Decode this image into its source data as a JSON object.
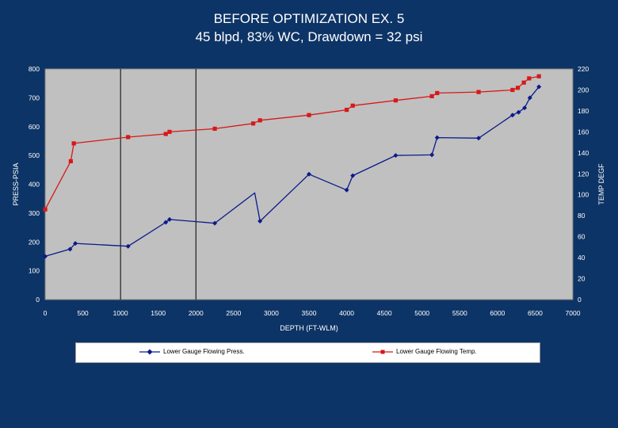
{
  "chart_data": {
    "type": "line",
    "title": "BEFORE OPTIMIZATION EX. 5",
    "subtitle": "45 blpd, 83% WC, Drawdown = 32 psi",
    "xlabel": "DEPTH (FT-WLM)",
    "ylabel": "PRESS-PSIA",
    "y2label": "TEMP DEGF",
    "xlim": [
      0,
      7000
    ],
    "ylim": [
      0,
      800
    ],
    "y2lim": [
      0,
      220
    ],
    "x_ticks": [
      "0",
      "500",
      "1000",
      "1500",
      "2000",
      "2500",
      "3000",
      "3500",
      "4000",
      "4500",
      "5000",
      "5500",
      "6000",
      "6500",
      "7000"
    ],
    "y_ticks": [
      "0",
      "100",
      "200",
      "300",
      "400",
      "500",
      "600",
      "700",
      "800"
    ],
    "y2_ticks": [
      "0",
      "20",
      "40",
      "60",
      "80",
      "100",
      "120",
      "140",
      "160",
      "180",
      "200",
      "220"
    ],
    "vertical_lines": [
      1000,
      2000
    ],
    "legend_position": "bottom",
    "series": [
      {
        "name": "Lower Gauge Flowing Press.",
        "axis": "left",
        "color": "#0a1a8a",
        "marker": "diamond",
        "x": [
          0,
          330,
          400,
          1100,
          1600,
          1650,
          2250,
          2780,
          2850,
          3500,
          4000,
          4080,
          4650,
          5130,
          5200,
          5750,
          6200,
          6280,
          6360,
          6430,
          6550
        ],
        "y": [
          150,
          175,
          195,
          185,
          268,
          278,
          265,
          370,
          272,
          435,
          380,
          430,
          500,
          502,
          562,
          560,
          640,
          650,
          665,
          700,
          738
        ],
        "markers": [
          1,
          1,
          1,
          1,
          1,
          1,
          1,
          0,
          1,
          1,
          1,
          1,
          1,
          1,
          1,
          1,
          1,
          1,
          1,
          1,
          1
        ],
        "points": [
          [
            0,
            150
          ],
          [
            330,
            175
          ],
          [
            400,
            195
          ],
          [
            1100,
            185
          ],
          [
            1600,
            268
          ],
          [
            1650,
            278
          ],
          [
            2250,
            265
          ],
          [
            2850,
            272
          ],
          [
            3500,
            435
          ],
          [
            4000,
            380
          ],
          [
            4080,
            430
          ],
          [
            4650,
            500
          ],
          [
            5130,
            502
          ],
          [
            5200,
            562
          ],
          [
            5750,
            560
          ],
          [
            6200,
            640
          ],
          [
            6280,
            650
          ],
          [
            6360,
            665
          ],
          [
            6430,
            700
          ],
          [
            6550,
            738
          ]
        ]
      },
      {
        "name": "Lower Gauge Flowing Temp.",
        "axis": "right",
        "color": "#d81818",
        "marker": "square",
        "x": [
          0,
          340,
          380,
          1100,
          1600,
          1650,
          2250,
          2760,
          2850,
          3500,
          4000,
          4080,
          4650,
          5130,
          5200,
          5750,
          6200,
          6270,
          6350,
          6420,
          6550
        ],
        "y": [
          86,
          132,
          149,
          155,
          158,
          160,
          163,
          168,
          171,
          176,
          181,
          185,
          190,
          194,
          197,
          198,
          200,
          202,
          207,
          211,
          213
        ],
        "points": [
          [
            0,
            86
          ],
          [
            340,
            132
          ],
          [
            380,
            149
          ],
          [
            1100,
            155
          ],
          [
            1600,
            158
          ],
          [
            1650,
            160
          ],
          [
            2250,
            163
          ],
          [
            2760,
            168
          ],
          [
            2850,
            171
          ],
          [
            3500,
            176
          ],
          [
            4000,
            181
          ],
          [
            4080,
            185
          ],
          [
            4650,
            190
          ],
          [
            5130,
            194
          ],
          [
            5200,
            197
          ],
          [
            5750,
            198
          ],
          [
            6200,
            200
          ],
          [
            6270,
            202
          ],
          [
            6350,
            207
          ],
          [
            6420,
            211
          ],
          [
            6550,
            213
          ]
        ]
      }
    ]
  }
}
